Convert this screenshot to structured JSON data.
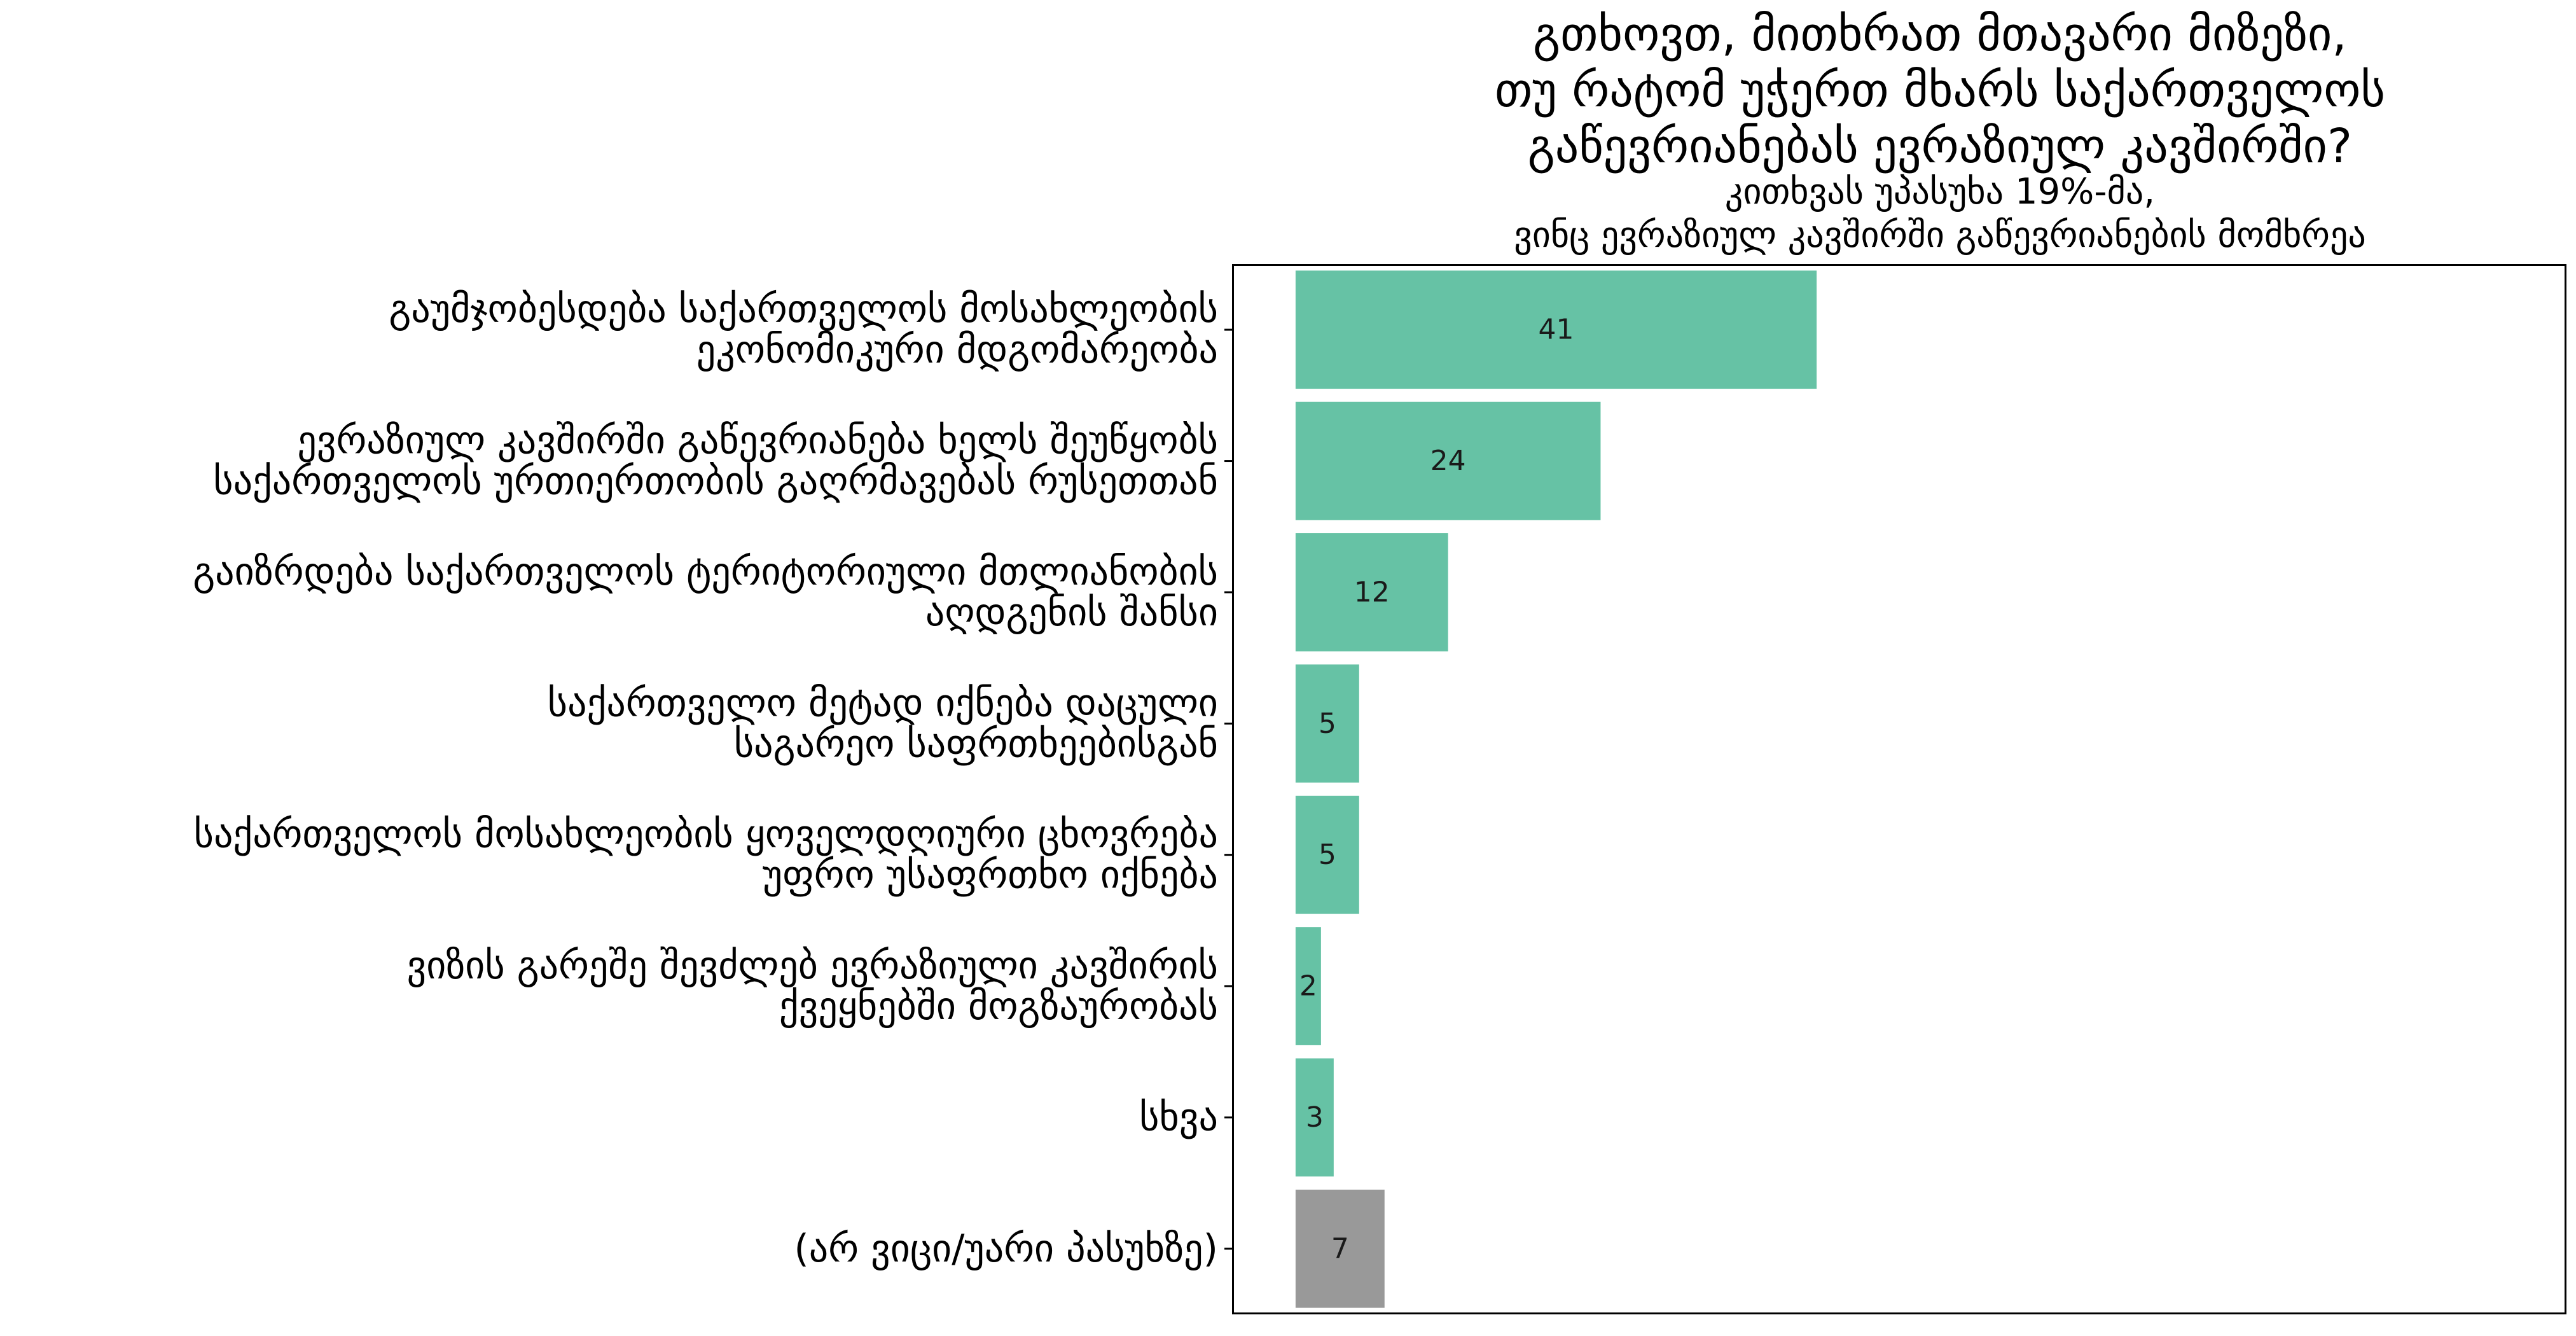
{
  "chart_data": {
    "type": "bar",
    "orientation": "horizontal",
    "title": "გთხოვთ, მითხრათ მთავარი მიზეზი,\nთუ რატომ უჭერთ მხარს საქართველოს\nგაწევრიანებას ევრაზიულ კავშირში?",
    "subtitle": "კითხვას უპასუხა 19%-მა,\nვინც ევრაზიულ კავშირში გაწევრიანების მომხრეა",
    "categories": [
      [
        "გაუმჯობესდება საქართველოს მოსახლეობის",
        "ეკონომიკური მდგომარეობა"
      ],
      [
        "ევრაზიულ კავშირში გაწევრიანება ხელს შეუწყობს",
        "საქართველოს ურთიერთობის გაღრმავებას რუსეთთან"
      ],
      [
        "გაიზრდება საქართველოს ტერიტორიული მთლიანობის",
        "აღდგენის შანსი"
      ],
      [
        "საქართველო მეტად იქნება დაცული",
        "საგარეო საფრთხეებისგან"
      ],
      [
        "საქართველოს მოსახლეობის ყოველდღიური ცხოვრება",
        "უფრო უსაფრთხო იქნება"
      ],
      [
        "ვიზის გარეშე შევძლებ ევრაზიული კავშირის",
        "ქვეყნებში მოგზაურობას"
      ],
      [
        "სხვა"
      ],
      [
        "(არ ვიცი/უარი პასუხზე)"
      ]
    ],
    "values": [
      41,
      24,
      12,
      5,
      5,
      2,
      3,
      7
    ],
    "bar_colors": [
      "#66c2a5",
      "#66c2a5",
      "#66c2a5",
      "#66c2a5",
      "#66c2a5",
      "#66c2a5",
      "#66c2a5",
      "#999999"
    ],
    "xlim": [
      -5,
      100
    ],
    "grid": false,
    "legend": "none"
  }
}
